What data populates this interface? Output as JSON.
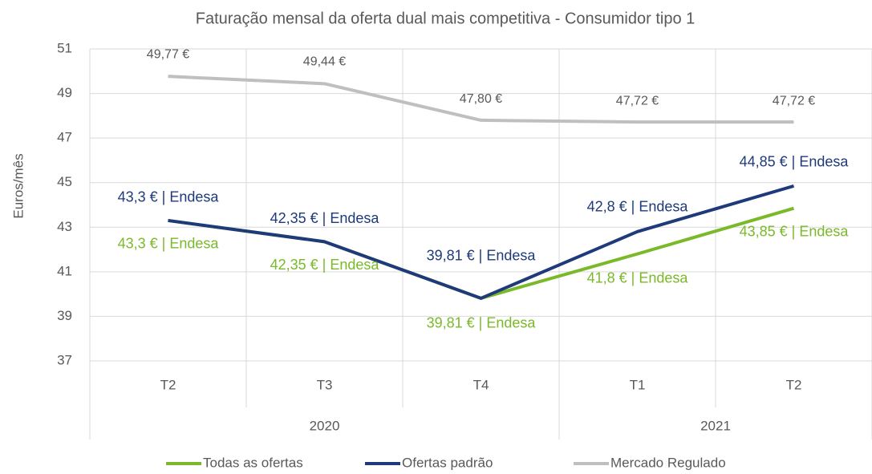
{
  "chart_data": {
    "type": "line",
    "title": "Faturação mensal da oferta dual mais competitiva - Consumidor tipo 1",
    "y_label": "Euros/mês",
    "categories": [
      "T2",
      "T3",
      "T4",
      "T1",
      "T2"
    ],
    "year_groups": [
      {
        "label": "2020",
        "count": 3
      },
      {
        "label": "2021",
        "count": 2
      }
    ],
    "ylim": [
      37,
      51
    ],
    "yticks": [
      37,
      39,
      41,
      43,
      45,
      47,
      49,
      51
    ],
    "grid": true,
    "legend": "bottom",
    "series": [
      {
        "name": "Todas as ofertas",
        "color": "#7ab929",
        "values": [
          43.3,
          42.35,
          39.81,
          41.8,
          43.85
        ],
        "value_labels": [
          "43,3 € | Endesa",
          "42,35 € | Endesa",
          "39,81 € | Endesa",
          "41,8 € | Endesa",
          "43,85 € | Endesa"
        ]
      },
      {
        "name": "Ofertas padrão",
        "color": "#1f3a7a",
        "values": [
          43.3,
          42.35,
          39.81,
          42.8,
          44.85
        ],
        "value_labels": [
          "43,3 € | Endesa",
          "42,35 € | Endesa",
          "39,81 € | Endesa",
          "42,8 € | Endesa",
          "44,85 € | Endesa"
        ]
      },
      {
        "name": "Mercado Regulado",
        "color": "#bfbfbf",
        "values": [
          49.77,
          49.44,
          47.8,
          47.72,
          47.72
        ],
        "value_labels": [
          "49,77 €",
          "49,44 €",
          "47,80 €",
          "47,72 €",
          "47,72 €"
        ]
      }
    ]
  }
}
